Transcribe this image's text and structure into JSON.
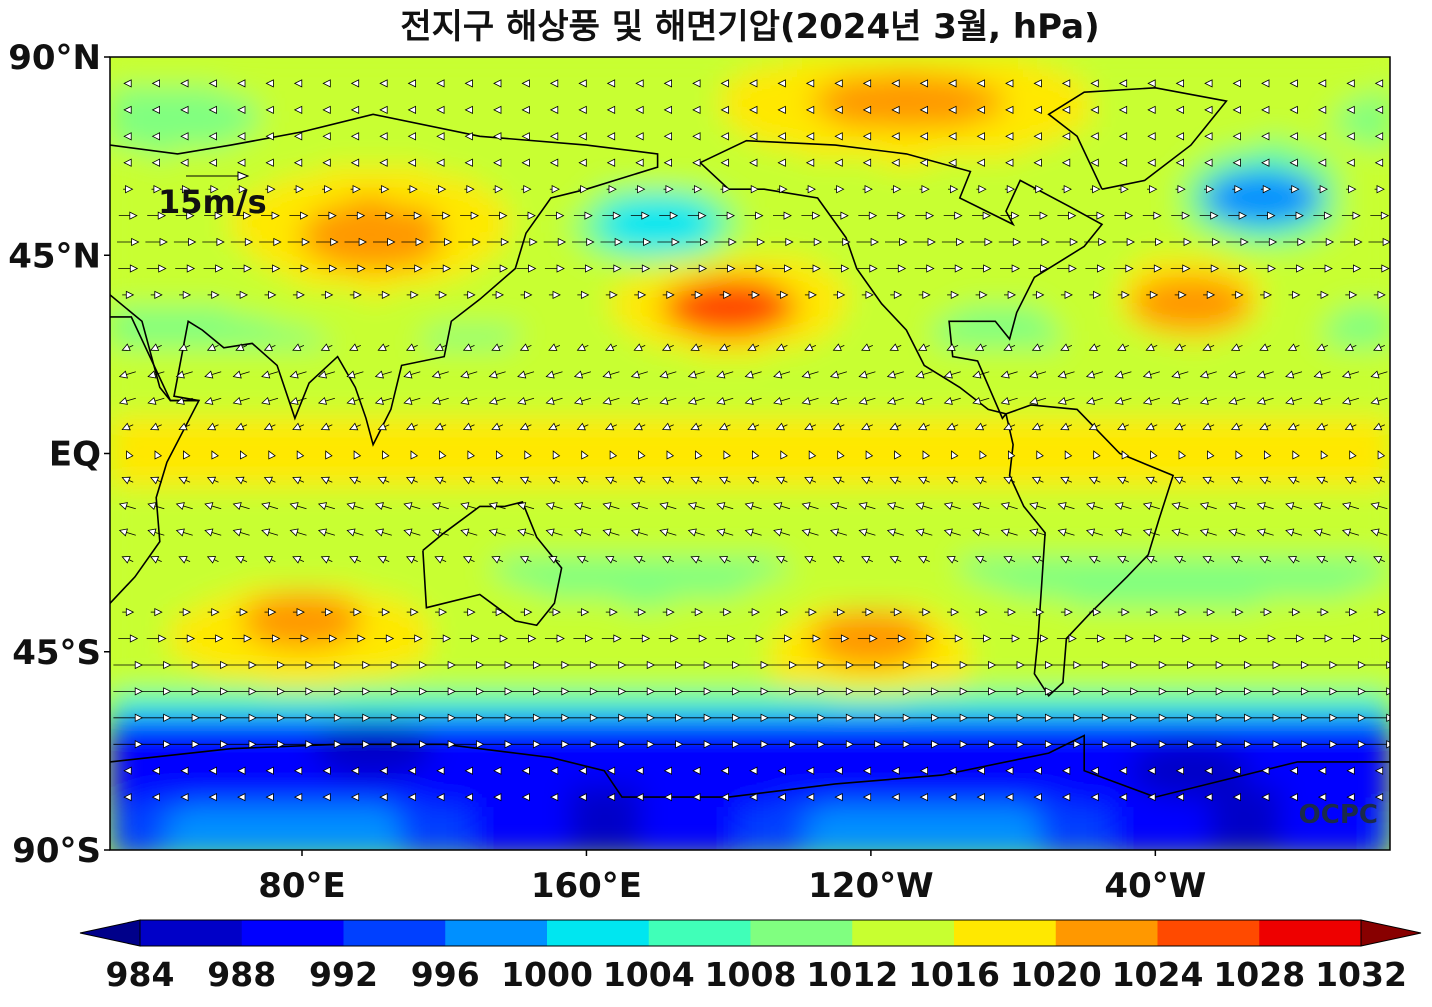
{
  "chart_data": {
    "type": "heatmap",
    "title": "전지구 해상풍 및 해면기압(2024년 3월, hPa)",
    "y_ticks": [
      "90°N",
      "45°N",
      "EQ",
      "45°S",
      "90°S"
    ],
    "y_tick_values": [
      90,
      45,
      0,
      -45,
      -90
    ],
    "x_ticks": [
      "80°E",
      "160°E",
      "120°W",
      "40°W"
    ],
    "x_tick_values": [
      80,
      160,
      240,
      320
    ],
    "x_range": [
      26,
      386
    ],
    "y_range": [
      -90,
      90
    ],
    "colorbar": {
      "levels": [
        984,
        988,
        992,
        996,
        1000,
        1004,
        1008,
        1012,
        1016,
        1020,
        1024,
        1028,
        1032
      ],
      "labels": [
        "984",
        "988",
        "992",
        "996",
        "1000",
        "1004",
        "1008",
        "1012",
        "1016",
        "1020",
        "1024",
        "1028",
        "1032"
      ],
      "colors": [
        "#00008a",
        "#0000c8",
        "#0000ff",
        "#0040ff",
        "#0090ff",
        "#00e6f0",
        "#40ffb8",
        "#80ff80",
        "#c8ff30",
        "#ffe800",
        "#ff9800",
        "#ff4a00",
        "#ee0000",
        "#880000"
      ],
      "extend": "both"
    },
    "reference_vector": {
      "label": "15m/s",
      "speed": 15
    },
    "pressure_centers": [
      {
        "lon": 100,
        "lat": 48,
        "value": 1023
      },
      {
        "lon": 200,
        "lat": 33,
        "value": 1026
      },
      {
        "lon": 330,
        "lat": 34,
        "value": 1023
      },
      {
        "lon": 250,
        "lat": 80,
        "value": 1023
      },
      {
        "lon": 350,
        "lat": 58,
        "value": 998
      },
      {
        "lon": 180,
        "lat": 52,
        "value": 1001
      },
      {
        "lon": 80,
        "lat": -38,
        "value": 1022
      },
      {
        "lon": 240,
        "lat": -42,
        "value": 1022
      },
      {
        "lon": 100,
        "lat": -67,
        "value": 985
      },
      {
        "lon": 330,
        "lat": -72,
        "value": 986
      }
    ]
  },
  "watermark": "OCPC"
}
